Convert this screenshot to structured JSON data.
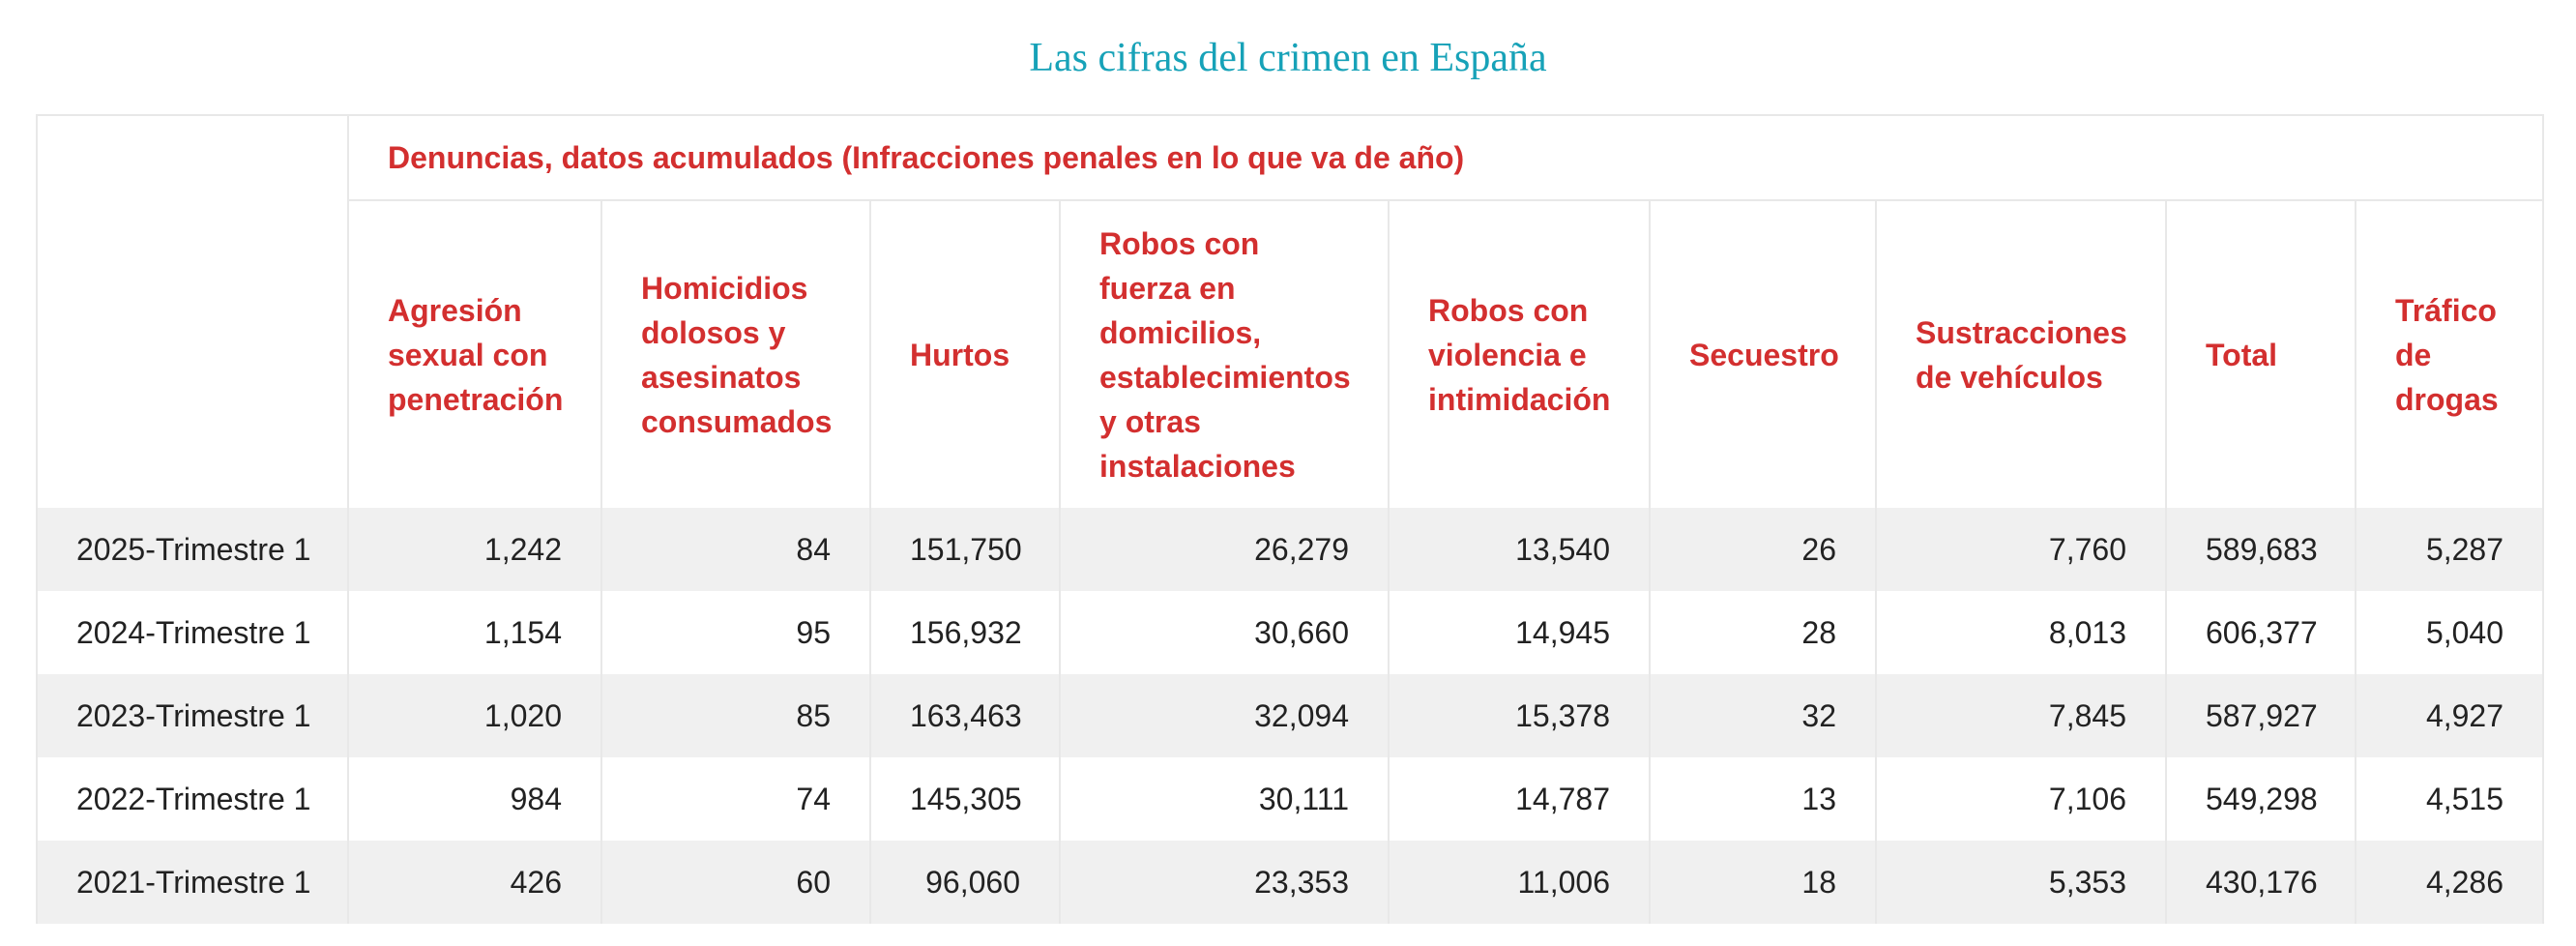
{
  "title": "Las cifras del crimen en España",
  "table": {
    "group_header": "Denuncias, datos acumulados (Infracciones penales en lo que va de año)",
    "columns": [
      "Agresión sexual con penetración",
      "Homicidios dolosos y asesinatos consumados",
      "Hurtos",
      "Robos con fuerza en domicilios, establecimientos y otras instalaciones",
      "Robos con violencia e intimidación",
      "Secuestro",
      "Sustracciones de vehículos",
      "Total",
      "Tráfico de drogas"
    ],
    "rows": [
      {
        "period": "2025-Trimestre 1",
        "values": [
          "1,242",
          "84",
          "151,750",
          "26,279",
          "13,540",
          "26",
          "7,760",
          "589,683",
          "5,287"
        ]
      },
      {
        "period": "2024-Trimestre 1",
        "values": [
          "1,154",
          "95",
          "156,932",
          "30,660",
          "14,945",
          "28",
          "8,013",
          "606,377",
          "5,040"
        ]
      },
      {
        "period": "2023-Trimestre 1",
        "values": [
          "1,020",
          "85",
          "163,463",
          "32,094",
          "15,378",
          "32",
          "7,845",
          "587,927",
          "4,927"
        ]
      },
      {
        "period": "2022-Trimestre 1",
        "values": [
          "984",
          "74",
          "145,305",
          "30,111",
          "14,787",
          "13",
          "7,106",
          "549,298",
          "4,515"
        ]
      },
      {
        "period": "2021-Trimestre 1",
        "values": [
          "426",
          "60",
          "96,060",
          "23,353",
          "11,006",
          "18",
          "5,353",
          "430,176",
          "4,286"
        ]
      }
    ]
  },
  "colors": {
    "title": "#17a2b8",
    "header_text": "#d32f2f",
    "row_stripe": "#f0f0f0",
    "border": "#e8e8e8"
  }
}
